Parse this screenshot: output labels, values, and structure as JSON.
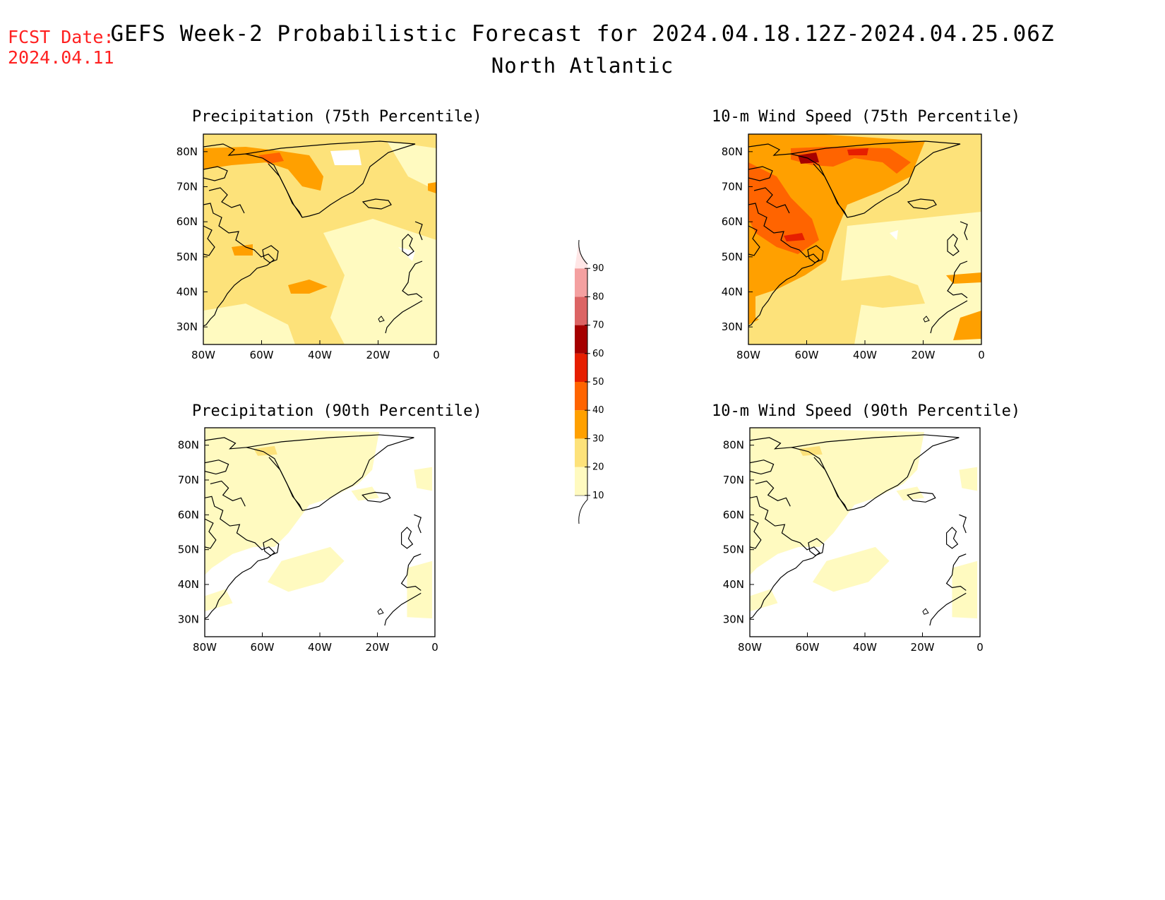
{
  "fcst": {
    "line1": "FCST Date:",
    "line2": "2024.04.11"
  },
  "title": "GEFS Week-2 Probabilistic Forecast for 2024.04.18.12Z-2024.04.25.06Z",
  "subtitle": "North Atlantic",
  "colorbar": {
    "levels": [
      10,
      20,
      30,
      40,
      50,
      60,
      70,
      80,
      90
    ],
    "labels": [
      "10",
      "20",
      "30",
      "40",
      "50",
      "60",
      "70",
      "80",
      "90"
    ],
    "colors": [
      "#fffac0",
      "#fde27a",
      "#ffa000",
      "#ff6400",
      "#e61e00",
      "#a50000",
      "#dc6464",
      "#f4a0a0",
      "#ffe6e6"
    ]
  },
  "axes": {
    "lat_labels": [
      "80N",
      "70N",
      "60N",
      "50N",
      "40N",
      "30N"
    ],
    "lon_labels": [
      "80W",
      "60W",
      "40W",
      "20W",
      "0"
    ]
  },
  "panels": [
    {
      "id": "precip75",
      "title": "Precipitation (75th Percentile)",
      "intensity": "moderate"
    },
    {
      "id": "wind75",
      "title": "10-m Wind Speed (75th Percentile)",
      "intensity": "high"
    },
    {
      "id": "precip90",
      "title": "Precipitation (90th Percentile)",
      "intensity": "low"
    },
    {
      "id": "wind90",
      "title": "10-m Wind Speed (90th Percentile)",
      "intensity": "low"
    }
  ]
}
